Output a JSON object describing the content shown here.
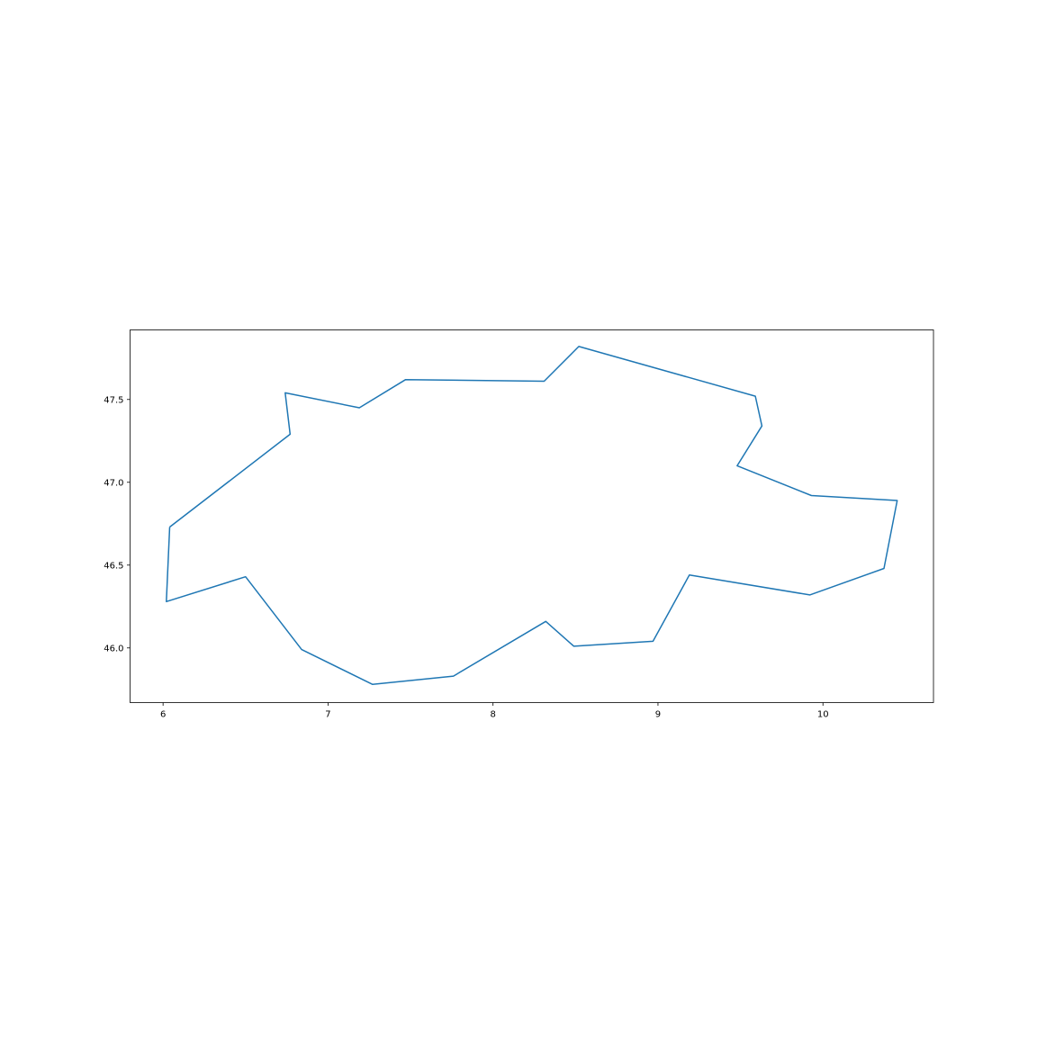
{
  "chart_data": {
    "type": "line",
    "title": "",
    "xlabel": "",
    "ylabel": "",
    "xlim": [
      5.8,
      10.67
    ],
    "ylim": [
      45.67,
      47.92
    ],
    "grid": false,
    "legend": "none",
    "x_ticks": [
      6,
      7,
      8,
      9,
      10
    ],
    "x_tick_labels": [
      "6",
      "7",
      "8",
      "9",
      "10"
    ],
    "y_ticks": [
      46.0,
      46.5,
      47.0,
      47.5
    ],
    "y_tick_labels": [
      "46.0",
      "46.5",
      "47.0",
      "47.5"
    ],
    "series": [
      {
        "color": "#1f77b4",
        "closed": true,
        "x": [
          6.04,
          6.77,
          6.74,
          7.19,
          7.47,
          8.31,
          8.52,
          9.59,
          9.63,
          9.48,
          9.93,
          10.45,
          10.37,
          9.92,
          9.19,
          8.97,
          8.49,
          8.32,
          7.76,
          7.27,
          6.84,
          6.5,
          6.02
        ],
        "y": [
          46.73,
          47.29,
          47.54,
          47.45,
          47.62,
          47.61,
          47.82,
          47.52,
          47.34,
          47.1,
          46.92,
          46.89,
          46.48,
          46.32,
          46.44,
          46.04,
          46.01,
          46.16,
          45.83,
          45.78,
          45.99,
          46.43,
          46.28
        ]
      }
    ]
  }
}
